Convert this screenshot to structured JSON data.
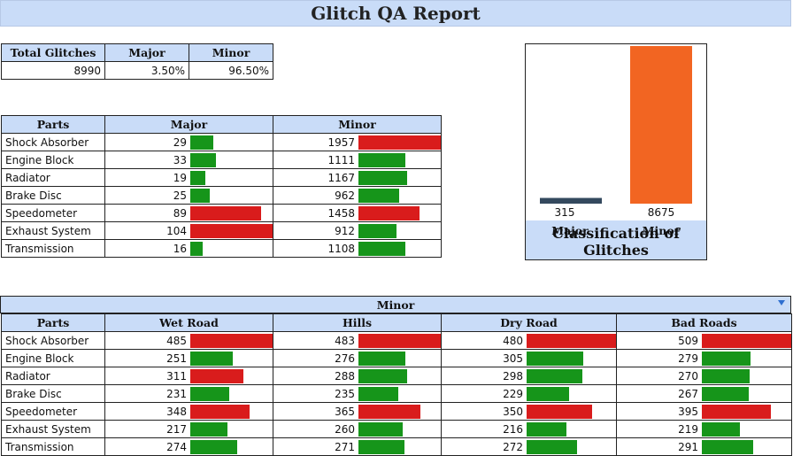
{
  "title": "Glitch QA Report",
  "summary": {
    "headers": [
      "Total Glitches",
      "Major",
      "Minor"
    ],
    "values": [
      "8990",
      "3.50%",
      "96.50%"
    ]
  },
  "colors": {
    "red": "#d91c1c",
    "green": "#16951a",
    "header_bg": "#c9dcf8",
    "orange": "#f26522",
    "navy": "#34495e"
  },
  "parts_table": {
    "headers": [
      "Parts",
      "Major",
      "Minor"
    ],
    "rows": [
      {
        "part": "Shock Absorber",
        "major": 29,
        "major_color": "green",
        "minor": 1957,
        "minor_color": "red"
      },
      {
        "part": "Engine Block",
        "major": 33,
        "major_color": "green",
        "minor": 1111,
        "minor_color": "green"
      },
      {
        "part": "Radiator",
        "major": 19,
        "major_color": "green",
        "minor": 1167,
        "minor_color": "green"
      },
      {
        "part": "Brake Disc",
        "major": 25,
        "major_color": "green",
        "minor": 962,
        "minor_color": "green"
      },
      {
        "part": "Speedometer",
        "major": 89,
        "major_color": "red",
        "minor": 1458,
        "minor_color": "red"
      },
      {
        "part": "Exhaust System",
        "major": 104,
        "major_color": "red",
        "minor": 912,
        "minor_color": "green"
      },
      {
        "part": "Transmission",
        "major": 16,
        "major_color": "green",
        "minor": 1108,
        "minor_color": "green"
      }
    ],
    "major_max": 104,
    "minor_max": 1957
  },
  "chart_data": {
    "type": "bar",
    "categories": [
      "Major",
      "Minor"
    ],
    "values": [
      315,
      8675
    ],
    "colors": [
      "#34495e",
      "#f26522"
    ],
    "title": "Classification of Glitches",
    "ylim": [
      0,
      8675
    ],
    "grid": false,
    "legend": "none"
  },
  "minor_section": {
    "label": "Minor",
    "headers": [
      "Parts",
      "Wet Road",
      "Hills",
      "Dry Road",
      "Bad Roads"
    ],
    "rows": [
      {
        "part": "Shock Absorber",
        "values": [
          485,
          483,
          480,
          509
        ],
        "colors": [
          "red",
          "red",
          "red",
          "red"
        ]
      },
      {
        "part": "Engine Block",
        "values": [
          251,
          276,
          305,
          279
        ],
        "colors": [
          "green",
          "green",
          "green",
          "green"
        ]
      },
      {
        "part": "Radiator",
        "values": [
          311,
          288,
          298,
          270
        ],
        "colors": [
          "red",
          "green",
          "green",
          "green"
        ]
      },
      {
        "part": "Brake Disc",
        "values": [
          231,
          235,
          229,
          267
        ],
        "colors": [
          "green",
          "green",
          "green",
          "green"
        ]
      },
      {
        "part": "Speedometer",
        "values": [
          348,
          365,
          350,
          395
        ],
        "colors": [
          "red",
          "red",
          "red",
          "red"
        ]
      },
      {
        "part": "Exhaust System",
        "values": [
          217,
          260,
          216,
          219
        ],
        "colors": [
          "green",
          "green",
          "green",
          "green"
        ]
      },
      {
        "part": "Transmission",
        "values": [
          274,
          271,
          272,
          291
        ],
        "colors": [
          "green",
          "green",
          "green",
          "green"
        ]
      }
    ],
    "col_max": [
      485,
      483,
      480,
      509
    ]
  }
}
